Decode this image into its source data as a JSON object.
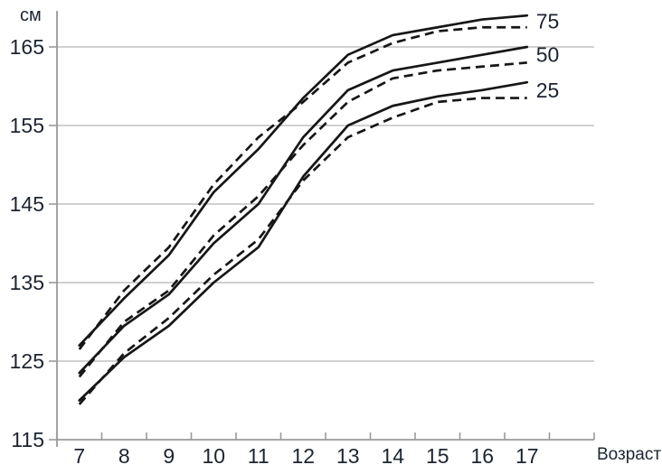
{
  "chart_data": {
    "type": "line",
    "title": "",
    "unit_label": "см",
    "x_axis_label": "Возраст",
    "x": [
      7,
      8,
      9,
      10,
      11,
      12,
      13,
      14,
      15,
      16,
      17
    ],
    "yticks": [
      115,
      125,
      135,
      145,
      155,
      165
    ],
    "ylim": [
      115,
      170
    ],
    "grid": "horizontal-only",
    "legend_position": "right-edge-inline",
    "percentile_labels": [
      "75",
      "50",
      "25"
    ],
    "series": [
      {
        "name": "p75-solid",
        "group": "75",
        "style": "solid",
        "values": [
          127.0,
          133.0,
          138.5,
          146.5,
          152.0,
          158.5,
          164.0,
          166.5,
          167.5,
          168.5,
          169.0
        ]
      },
      {
        "name": "p75-dashed",
        "group": "75",
        "style": "dashed",
        "values": [
          126.5,
          134.0,
          139.5,
          147.5,
          153.5,
          158.0,
          163.0,
          165.5,
          167.0,
          167.5,
          167.5
        ]
      },
      {
        "name": "p50-solid",
        "group": "50",
        "style": "solid",
        "values": [
          123.5,
          129.5,
          133.5,
          140.0,
          145.0,
          153.5,
          159.5,
          162.0,
          163.0,
          164.0,
          165.0
        ]
      },
      {
        "name": "p50-dashed",
        "group": "50",
        "style": "dashed",
        "values": [
          123.0,
          130.0,
          134.0,
          141.0,
          146.0,
          152.5,
          158.0,
          161.0,
          162.0,
          162.5,
          163.0
        ]
      },
      {
        "name": "p25-solid",
        "group": "25",
        "style": "solid",
        "values": [
          120.0,
          125.5,
          129.5,
          135.0,
          139.5,
          148.5,
          155.0,
          157.5,
          158.7,
          159.5,
          160.5
        ]
      },
      {
        "name": "p25-dashed",
        "group": "25",
        "style": "dashed",
        "values": [
          119.5,
          126.0,
          130.5,
          136.0,
          140.5,
          148.0,
          153.5,
          156.0,
          158.0,
          158.5,
          158.5
        ]
      }
    ],
    "colors": {
      "line": "#161616",
      "grid": "#b3b3b3",
      "axis": "#9a9a9a",
      "text": "#1c2430"
    }
  }
}
